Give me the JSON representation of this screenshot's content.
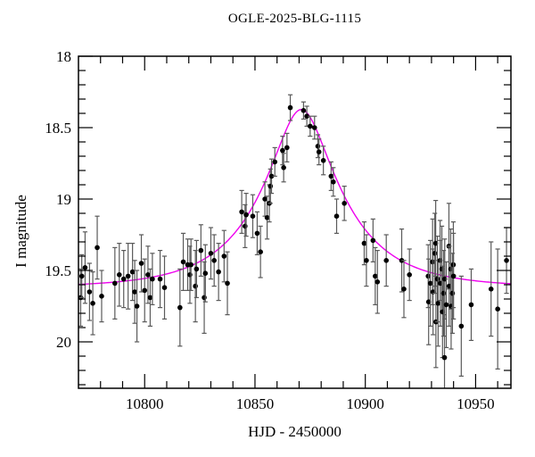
{
  "chart_data": {
    "type": "scatter",
    "title": "OGLE-2025-BLG-1115",
    "xlabel": "HJD - 2450000",
    "ylabel": "I magnitude",
    "x_range": [
      10770,
      10966
    ],
    "y_range": [
      18.0,
      20.325
    ],
    "y_axis_inverted": true,
    "grid": false,
    "legend": "none",
    "x_ticks_major": [
      10800,
      10850,
      10900,
      10950
    ],
    "x_tick_labels": [
      "10800",
      "10850",
      "10900",
      "10950"
    ],
    "x_tick_minor_step": 10,
    "y_ticks_major": [
      18,
      18.5,
      19,
      19.5,
      20
    ],
    "y_tick_labels": [
      "18",
      "18.5",
      "19",
      "19.5",
      "20"
    ],
    "y_tick_minor_step": 0.1,
    "colors": {
      "point": "#000000",
      "errorbar": "#5a5a5a",
      "model_curve": "#ee00ee",
      "frame": "#000000"
    },
    "model": {
      "type": "point-source-point-lens",
      "t0": 10871,
      "tE": 36,
      "u0": 0.33,
      "baseline_mag": 19.62,
      "peak_mag": 18.38
    },
    "points": [
      [
        10771.0,
        19.69,
        0.2
      ],
      [
        10771.5,
        19.54,
        0.15
      ],
      [
        10773.0,
        19.48,
        0.25
      ],
      [
        10775.0,
        19.65,
        0.2
      ],
      [
        10776.5,
        19.73,
        0.22
      ],
      [
        10778.5,
        19.34,
        0.22
      ],
      [
        10780.5,
        19.68,
        0.18
      ],
      [
        10786.5,
        19.59,
        0.25
      ],
      [
        10788.5,
        19.53,
        0.22
      ],
      [
        10790.5,
        19.56,
        0.2
      ],
      [
        10792.5,
        19.54,
        0.23
      ],
      [
        10794.5,
        19.51,
        0.2
      ],
      [
        10795.5,
        19.65,
        0.22
      ],
      [
        10796.5,
        19.75,
        0.25
      ],
      [
        10798.5,
        19.45,
        0.2
      ],
      [
        10800.0,
        19.64,
        0.22
      ],
      [
        10801.5,
        19.53,
        0.2
      ],
      [
        10802.5,
        19.69,
        0.2
      ],
      [
        10803.5,
        19.56,
        0.18
      ],
      [
        10807.0,
        19.56,
        0.2
      ],
      [
        10809.0,
        19.62,
        0.22
      ],
      [
        10816.0,
        19.76,
        0.27
      ],
      [
        10817.5,
        19.44,
        0.2
      ],
      [
        10819.5,
        19.46,
        0.18
      ],
      [
        10820.5,
        19.53,
        0.2
      ],
      [
        10821.0,
        19.46,
        0.18
      ],
      [
        10823.0,
        19.61,
        0.25
      ],
      [
        10823.5,
        19.49,
        0.2
      ],
      [
        10825.5,
        19.36,
        0.18
      ],
      [
        10827.0,
        19.69,
        0.25
      ],
      [
        10827.5,
        19.52,
        0.2
      ],
      [
        10830.0,
        19.38,
        0.18
      ],
      [
        10831.5,
        19.43,
        0.18
      ],
      [
        10833.5,
        19.51,
        0.2
      ],
      [
        10836.0,
        19.4,
        0.18
      ],
      [
        10837.5,
        19.59,
        0.22
      ],
      [
        10844.0,
        19.09,
        0.15
      ],
      [
        10845.5,
        19.19,
        0.15
      ],
      [
        10846.0,
        19.11,
        0.15
      ],
      [
        10849.0,
        19.12,
        0.15
      ],
      [
        10851.0,
        19.24,
        0.15
      ],
      [
        10852.5,
        19.37,
        0.18
      ],
      [
        10854.5,
        19.0,
        0.12
      ],
      [
        10855.5,
        19.13,
        0.15
      ],
      [
        10856.5,
        19.03,
        0.13
      ],
      [
        10857.0,
        18.91,
        0.12
      ],
      [
        10857.5,
        18.84,
        0.12
      ],
      [
        10859.0,
        18.74,
        0.1
      ],
      [
        10862.5,
        18.66,
        0.1
      ],
      [
        10863.0,
        18.78,
        0.1
      ],
      [
        10864.5,
        18.64,
        0.1
      ],
      [
        10866.0,
        18.36,
        0.09
      ],
      [
        10872.0,
        18.38,
        0.06
      ],
      [
        10873.5,
        18.42,
        0.07
      ],
      [
        10875.0,
        18.49,
        0.07
      ],
      [
        10877.0,
        18.5,
        0.08
      ],
      [
        10878.5,
        18.63,
        0.08
      ],
      [
        10879.0,
        18.67,
        0.09
      ],
      [
        10881.0,
        18.73,
        0.1
      ],
      [
        10884.5,
        18.84,
        0.1
      ],
      [
        10885.5,
        18.88,
        0.1
      ],
      [
        10887.0,
        19.12,
        0.12
      ],
      [
        10890.5,
        19.03,
        0.12
      ],
      [
        10899.5,
        19.31,
        0.15
      ],
      [
        10900.5,
        19.43,
        0.18
      ],
      [
        10903.5,
        19.29,
        0.15
      ],
      [
        10904.5,
        19.54,
        0.2
      ],
      [
        10905.5,
        19.58,
        0.22
      ],
      [
        10909.5,
        19.43,
        0.18
      ],
      [
        10916.5,
        19.43,
        0.22
      ],
      [
        10917.5,
        19.63,
        0.2
      ],
      [
        10920.0,
        19.53,
        0.18
      ],
      [
        10928.5,
        19.54,
        0.22
      ],
      [
        10928.7,
        19.72,
        0.3
      ],
      [
        10929.5,
        19.59,
        0.3
      ],
      [
        10930.5,
        19.44,
        0.3
      ],
      [
        10930.7,
        19.65,
        0.3
      ],
      [
        10931.5,
        19.38,
        0.28
      ],
      [
        10931.9,
        19.31,
        0.3
      ],
      [
        10932.0,
        19.86,
        0.32
      ],
      [
        10932.7,
        19.56,
        0.3
      ],
      [
        10933.0,
        19.73,
        0.3
      ],
      [
        10933.9,
        19.43,
        0.28
      ],
      [
        10934.0,
        19.59,
        0.3
      ],
      [
        10934.7,
        19.49,
        0.3
      ],
      [
        10935.0,
        19.79,
        0.32
      ],
      [
        10935.5,
        19.66,
        0.3
      ],
      [
        10935.9,
        20.11,
        0.3
      ],
      [
        10936.0,
        19.56,
        0.28
      ],
      [
        10936.7,
        19.74,
        0.3
      ],
      [
        10937.9,
        19.33,
        0.3
      ],
      [
        10938.0,
        19.61,
        0.28
      ],
      [
        10938.7,
        19.49,
        0.28
      ],
      [
        10938.9,
        19.75,
        0.3
      ],
      [
        10939.5,
        19.66,
        0.28
      ],
      [
        10939.9,
        19.46,
        0.3
      ],
      [
        10940.0,
        19.54,
        0.3
      ],
      [
        10943.5,
        19.89,
        0.35
      ],
      [
        10948.0,
        19.74,
        0.25
      ],
      [
        10957.0,
        19.63,
        0.33
      ],
      [
        10960.0,
        19.77,
        0.42
      ],
      [
        10964.0,
        19.43,
        0.23
      ]
    ]
  }
}
